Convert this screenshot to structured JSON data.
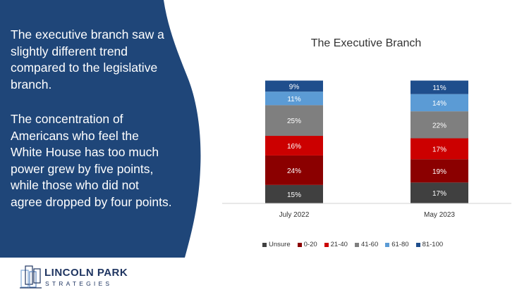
{
  "slide": {
    "paragraph_1": "The executive branch saw a slightly different trend compared to the legislative branch.",
    "paragraph_2": "The concentration of Americans who feel the White House has too much power grew by five points, while those who did not agree dropped by four points.",
    "panel_color": "#1f4679"
  },
  "logo": {
    "name_line1": "LINCOLN PARK",
    "name_line2": "STRATEGIES",
    "color": "#1f3561"
  },
  "chart_data": {
    "type": "bar",
    "stacked": true,
    "title": "The Executive Branch",
    "categories": [
      "July 2022",
      "May 2023"
    ],
    "series": [
      {
        "name": "Unsure",
        "color": "#404040",
        "values": [
          15,
          17
        ],
        "labels": [
          "15%",
          "17%"
        ]
      },
      {
        "name": "0-20",
        "color": "#8b0000",
        "values": [
          24,
          19
        ],
        "labels": [
          "24%",
          "19%"
        ]
      },
      {
        "name": "21-40",
        "color": "#cc0000",
        "values": [
          16,
          17
        ],
        "labels": [
          "16%",
          "17%"
        ]
      },
      {
        "name": "41-60",
        "color": "#7f7f7f",
        "values": [
          25,
          22
        ],
        "labels": [
          "25%",
          "22%"
        ]
      },
      {
        "name": "61-80",
        "color": "#5b9bd5",
        "values": [
          11,
          14
        ],
        "labels": [
          "11%",
          "14%"
        ]
      },
      {
        "name": "81-100",
        "color": "#1f4e8c",
        "values": [
          9,
          11
        ],
        "labels": [
          "9%",
          "11%"
        ]
      }
    ],
    "legend_position": "bottom",
    "xlabel": "",
    "ylabel": "",
    "grid": false
  }
}
